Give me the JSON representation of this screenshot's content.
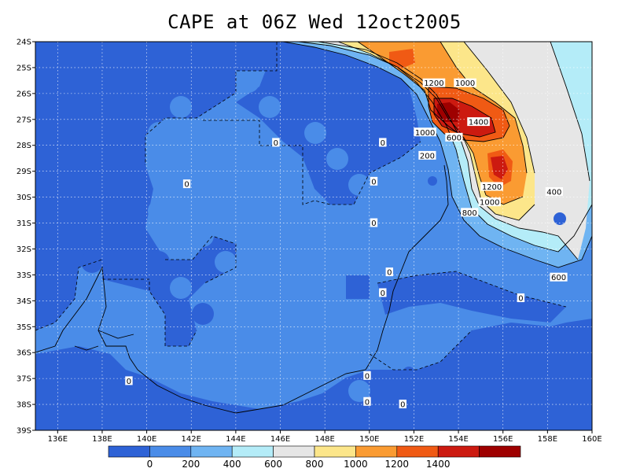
{
  "title": "CAPE at 06Z Wed 12oct2005",
  "chart_data": {
    "type": "heatmap",
    "title": "CAPE at 06Z Wed 12oct2005",
    "x_ticks": [
      "136E",
      "138E",
      "140E",
      "142E",
      "144E",
      "146E",
      "148E",
      "150E",
      "152E",
      "154E",
      "156E",
      "158E",
      "160E"
    ],
    "y_ticks": [
      "24S",
      "25S",
      "26S",
      "27S",
      "28S",
      "29S",
      "30S",
      "31S",
      "32S",
      "33S",
      "34S",
      "35S",
      "36S",
      "37S",
      "38S",
      "39S"
    ],
    "xlim": [
      135,
      160
    ],
    "ylim": [
      -39,
      -24
    ],
    "grid": true,
    "colorbar": {
      "levels": [
        0,
        200,
        400,
        600,
        800,
        1000,
        1200,
        1400
      ],
      "labels": [
        "0",
        "200",
        "400",
        "600",
        "800",
        "1000",
        "1200",
        "1400"
      ],
      "colors": [
        "#2e62d6",
        "#4a8ce8",
        "#6fb4f2",
        "#b4ecf8",
        "#e6e6e6",
        "#fce68a",
        "#fa9b32",
        "#f05a14",
        "#cc1a10",
        "#9e0000"
      ]
    },
    "contour_labels": [
      {
        "text": "0",
        "lon": 145.8,
        "lat": -27.9
      },
      {
        "text": "0",
        "lon": 141.8,
        "lat": -29.5
      },
      {
        "text": "0",
        "lon": 150.6,
        "lat": -27.9
      },
      {
        "text": "0",
        "lon": 150.2,
        "lat": -29.4
      },
      {
        "text": "0",
        "lon": 150.2,
        "lat": -31.0
      },
      {
        "text": "0",
        "lon": 150.9,
        "lat": -32.9
      },
      {
        "text": "0",
        "lon": 150.6,
        "lat": -33.7
      },
      {
        "text": "0",
        "lon": 156.8,
        "lat": -33.9
      },
      {
        "text": "0",
        "lon": 139.2,
        "lat": -37.1
      },
      {
        "text": "0",
        "lon": 149.9,
        "lat": -36.9
      },
      {
        "text": "0",
        "lon": 149.9,
        "lat": -37.9
      },
      {
        "text": "0",
        "lon": 151.5,
        "lat": -38.0
      },
      {
        "text": "200",
        "lon": 152.6,
        "lat": -28.4
      },
      {
        "text": "400",
        "lon": 158.3,
        "lat": -29.8
      },
      {
        "text": "600",
        "lon": 158.5,
        "lat": -33.1
      },
      {
        "text": "600",
        "lon": 153.8,
        "lat": -27.7
      },
      {
        "text": "800",
        "lon": 154.5,
        "lat": -30.6
      },
      {
        "text": "1000",
        "lon": 154.3,
        "lat": -25.6
      },
      {
        "text": "1000",
        "lon": 152.5,
        "lat": -27.5
      },
      {
        "text": "1000",
        "lon": 155.4,
        "lat": -30.2
      },
      {
        "text": "1200",
        "lon": 152.9,
        "lat": -25.6
      },
      {
        "text": "1200",
        "lon": 155.5,
        "lat": -29.6
      },
      {
        "text": "1400",
        "lon": 154.9,
        "lat": -27.1
      }
    ]
  }
}
